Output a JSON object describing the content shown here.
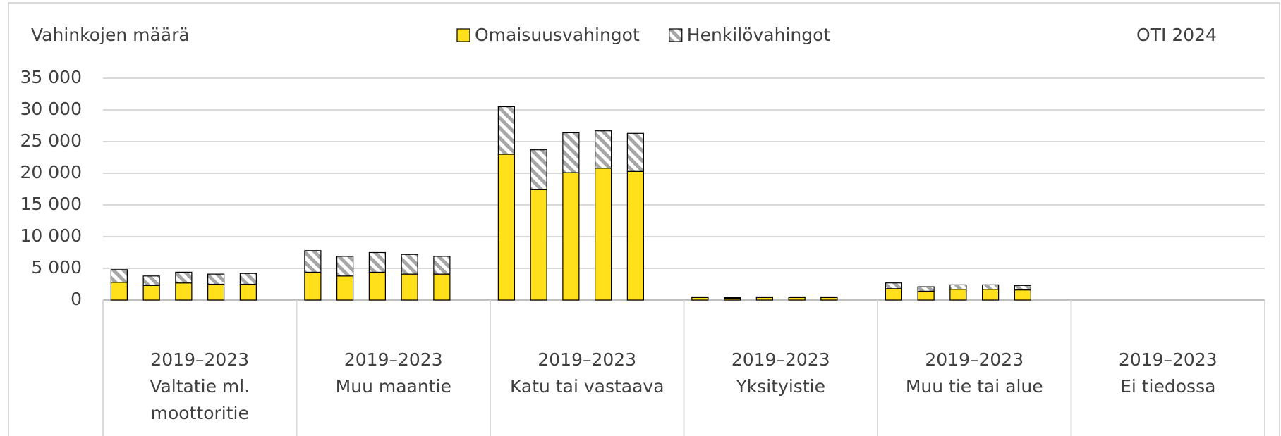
{
  "chart_data": {
    "type": "stacked_bar",
    "y_label": "Vahinkojen määrä",
    "source": "OTI 2024",
    "groups": [
      {
        "period": "2019–2023",
        "name": "Valtatie ml. moottoritie"
      },
      {
        "period": "2019–2023",
        "name": "Muu maantie"
      },
      {
        "period": "2019–2023",
        "name": "Katu tai vastaava"
      },
      {
        "period": "2019–2023",
        "name": "Yksityistie"
      },
      {
        "period": "2019–2023",
        "name": "Muu tie tai alue"
      },
      {
        "period": "2019–2023",
        "name": "Ei tiedossa"
      }
    ],
    "series": [
      {
        "name": "Omaisuusvahingot",
        "color": "#ffe01a",
        "values": [
          2800,
          2300,
          2700,
          2500,
          2500,
          4400,
          3800,
          4400,
          4100,
          4100,
          23000,
          17400,
          20100,
          20800,
          20300,
          400,
          300,
          400,
          400,
          400,
          1800,
          1400,
          1700,
          1700,
          1600,
          0,
          0,
          0,
          0,
          0
        ]
      },
      {
        "name": "Henkilövahingot",
        "color": "#a6a6a6",
        "pattern": "hatch",
        "values": [
          2000,
          1500,
          1700,
          1600,
          1700,
          3400,
          3100,
          3100,
          3100,
          2800,
          7500,
          6300,
          6300,
          5900,
          6000,
          100,
          100,
          100,
          100,
          100,
          900,
          700,
          700,
          700,
          700,
          0,
          0,
          0,
          0,
          0
        ]
      }
    ],
    "ylim": [
      0,
      35000
    ],
    "yticks": [
      0,
      {
        "value": 5000,
        "label": "5 000"
      },
      {
        "value": 10000,
        "label": "10 000"
      },
      {
        "value": 15000,
        "label": "15 000"
      },
      {
        "value": 20000,
        "label": "20 000"
      },
      {
        "value": 25000,
        "label": "25 000"
      },
      {
        "value": 30000,
        "label": "30 000"
      },
      {
        "value": 35000,
        "label": "35 000"
      }
    ],
    "grid": true
  }
}
